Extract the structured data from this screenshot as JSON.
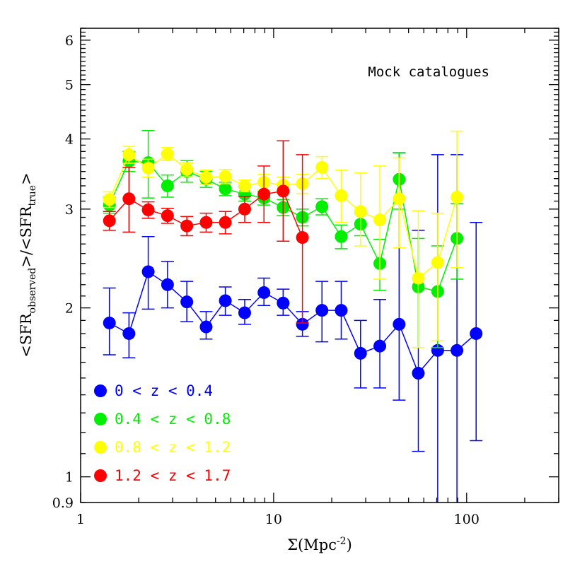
{
  "chart_data": {
    "type": "scatter",
    "title": "",
    "annotation": "Mock catalogues",
    "xlabel": {
      "pre": "Σ(Mpc",
      "sup": "-2",
      "post": ")"
    },
    "ylabel": {
      "open": "<SFR",
      "sub1": "observed",
      "mid": ">/<SFR",
      "sub2": "true",
      "close": ">"
    },
    "xscale": "log",
    "yscale": "log",
    "xlim": [
      1,
      300
    ],
    "ylim": [
      0.9,
      6.3
    ],
    "x_major_ticks": [
      1,
      10,
      100
    ],
    "x_tick_labels": [
      "1",
      "10",
      "100"
    ],
    "y_major_ticks": [
      0.9,
      1,
      2,
      3,
      4,
      5,
      6
    ],
    "y_tick_labels": [
      "0.9",
      "1",
      "2",
      "3",
      "4",
      "5",
      "6"
    ],
    "x": [
      1.41,
      1.78,
      2.24,
      2.82,
      3.55,
      4.47,
      5.62,
      7.08,
      8.91,
      11.2,
      14.1,
      17.8,
      22.4,
      28.2,
      35.5,
      44.7,
      56.2,
      70.8,
      89.1,
      112
    ],
    "series": [
      {
        "name": "0 < z < 0.4",
        "color": "#0000ff",
        "y": [
          1.88,
          1.8,
          2.32,
          2.2,
          2.05,
          1.85,
          2.06,
          1.96,
          2.13,
          2.04,
          1.87,
          1.98,
          1.98,
          1.66,
          1.71,
          1.87,
          1.53,
          1.68,
          1.68,
          1.8
        ],
        "ylow": [
          1.65,
          1.63,
          1.99,
          2.0,
          1.89,
          1.76,
          1.94,
          1.87,
          2.02,
          1.94,
          1.78,
          1.74,
          1.76,
          1.44,
          1.44,
          1.37,
          1.11,
          0.85,
          0.85,
          1.16
        ],
        "yhigh": [
          2.17,
          1.96,
          2.68,
          2.42,
          2.23,
          1.97,
          2.18,
          2.07,
          2.26,
          2.16,
          1.97,
          2.23,
          2.23,
          1.9,
          2.07,
          3.78,
          2.75,
          3.75,
          3.75,
          2.84
        ]
      },
      {
        "name": "0.4 < z < 0.8",
        "color": "#00ee00",
        "y": [
          3.05,
          3.65,
          3.63,
          3.3,
          3.5,
          3.39,
          3.26,
          3.19,
          3.14,
          3.02,
          2.9,
          3.03,
          2.68,
          2.82,
          2.4,
          3.39,
          2.18,
          2.14,
          2.66
        ],
        "ylow": [
          2.95,
          3.5,
          3.14,
          3.15,
          3.35,
          3.28,
          3.17,
          3.1,
          3.05,
          2.92,
          2.8,
          2.93,
          2.55,
          2.69,
          2.15,
          3.0,
          1.7,
          1.7,
          2.25
        ],
        "yhigh": [
          3.15,
          3.8,
          4.14,
          3.45,
          3.66,
          3.5,
          3.35,
          3.28,
          3.23,
          3.12,
          3.0,
          3.13,
          2.81,
          2.95,
          2.65,
          3.78,
          2.66,
          2.58,
          3.07
        ]
      },
      {
        "name": "0.8 < z < 1.2",
        "color": "#ffff00",
        "y": [
          3.12,
          3.75,
          3.55,
          3.76,
          3.53,
          3.42,
          3.43,
          3.3,
          3.35,
          3.31,
          3.33,
          3.56,
          3.17,
          2.97,
          2.87,
          3.13,
          2.26,
          2.41,
          3.15
        ],
        "ylow": [
          3.02,
          3.62,
          3.42,
          3.66,
          3.43,
          3.32,
          3.33,
          3.22,
          3.24,
          3.2,
          3.2,
          3.4,
          2.84,
          2.58,
          2.25,
          2.56,
          1.7,
          1.75,
          2.36
        ],
        "yhigh": [
          3.22,
          3.88,
          3.68,
          3.86,
          3.63,
          3.52,
          3.53,
          3.38,
          3.46,
          3.42,
          3.46,
          3.72,
          3.52,
          3.48,
          3.58,
          3.7,
          2.98,
          2.95,
          4.13
        ]
      },
      {
        "name": "1.2 < z < 1.7",
        "color": "#ff0000",
        "y": [
          2.86,
          3.13,
          2.99,
          2.92,
          2.8,
          2.84,
          2.84,
          3.0,
          3.19,
          3.23,
          2.67
        ],
        "ylow": [
          2.75,
          2.73,
          2.89,
          2.83,
          2.69,
          2.73,
          2.71,
          2.84,
          2.84,
          2.63,
          1.88
        ],
        "yhigh": [
          2.97,
          3.56,
          3.09,
          3.01,
          2.91,
          2.95,
          2.97,
          3.16,
          3.58,
          3.97,
          3.75
        ]
      }
    ],
    "legend": {
      "placement": "bottom-left"
    }
  }
}
